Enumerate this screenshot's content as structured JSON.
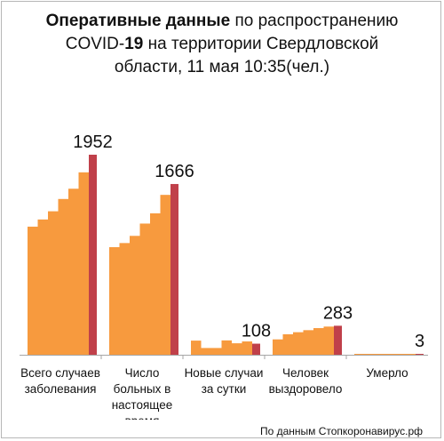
{
  "title": {
    "part1_bold": "Оперативные данные",
    "part2": " по распространению",
    "part3": "COVID-",
    "part4_bold": "19",
    "part5": " на территории Свердловской",
    "line3": "области, 11 мая 10:35(чел.)"
  },
  "source": "По данным Стопкоронавирус.рф",
  "colors": {
    "history_bar": "#f79a3e",
    "current_bar": "#c0404a",
    "axis": "#a6a6a6"
  },
  "chart_data": {
    "type": "bar",
    "title": "Оперативные данные по распространению COVID-19 на территории Свердловской области, 11 мая 10:35(чел.)",
    "ylim": [
      0,
      2000
    ],
    "grid": false,
    "categories": [
      {
        "label_lines": [
          "Всего случаев",
          "заболевания"
        ],
        "history": [
          1250,
          1320,
          1400,
          1520,
          1620,
          1780
        ],
        "current": 1952,
        "label": "1952"
      },
      {
        "label_lines": [
          "Число",
          "больных в",
          "настоящее",
          "время"
        ],
        "history": [
          1050,
          1090,
          1160,
          1280,
          1380,
          1560
        ],
        "current": 1666,
        "label": "1666"
      },
      {
        "label_lines": [
          "Новые случаи",
          "за сутки"
        ],
        "history": [
          138,
          66,
          66,
          140,
          112,
          130
        ],
        "current": 108,
        "label": "108"
      },
      {
        "label_lines": [
          "Человек",
          "выздоровело"
        ],
        "history": [
          150,
          200,
          220,
          240,
          260,
          275
        ],
        "current": 283,
        "label": "283"
      },
      {
        "label_lines": [
          "Умерло"
        ],
        "history": [
          2,
          2,
          2,
          2,
          3,
          3
        ],
        "current": 3,
        "label": "3"
      }
    ]
  }
}
